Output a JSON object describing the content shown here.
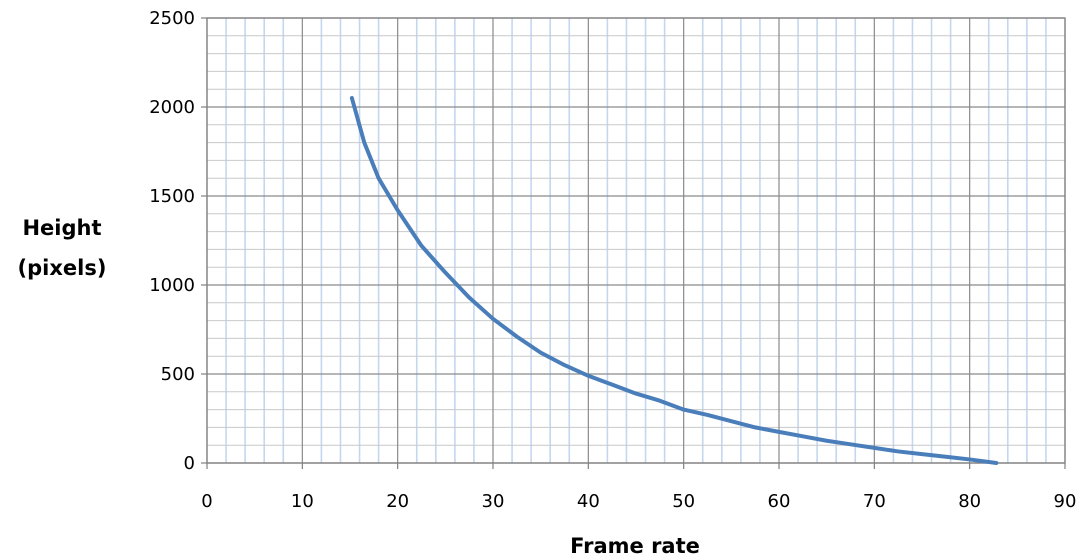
{
  "chart_data": {
    "type": "line",
    "title": "",
    "xlabel": "Frame rate",
    "ylabel_lines": [
      "Height",
      "(pixels)"
    ],
    "xlim": [
      0,
      90
    ],
    "ylim": [
      0,
      2500
    ],
    "x_ticks": [
      "0",
      "10",
      "20",
      "30",
      "40",
      "50",
      "60",
      "70",
      "80",
      "90"
    ],
    "y_ticks": [
      "0",
      "500",
      "1000",
      "1500",
      "2000",
      "2500"
    ],
    "grid": true,
    "minor_grid": true,
    "legend": "none",
    "series": [
      {
        "color": "#4a7ebb",
        "x": [
          15.2,
          16.5,
          18,
          20,
          22.5,
          25,
          27.5,
          30,
          32.5,
          35,
          37.5,
          40,
          42.5,
          45,
          47.5,
          50,
          52.5,
          55,
          57.5,
          60,
          62.5,
          65,
          67.5,
          70,
          72.5,
          75,
          77.5,
          80,
          82.8
        ],
        "y": [
          2050,
          1800,
          1600,
          1420,
          1220,
          1070,
          930,
          810,
          710,
          620,
          550,
          490,
          440,
          390,
          350,
          300,
          270,
          235,
          200,
          175,
          150,
          125,
          105,
          85,
          65,
          50,
          35,
          20,
          0
        ]
      }
    ]
  }
}
